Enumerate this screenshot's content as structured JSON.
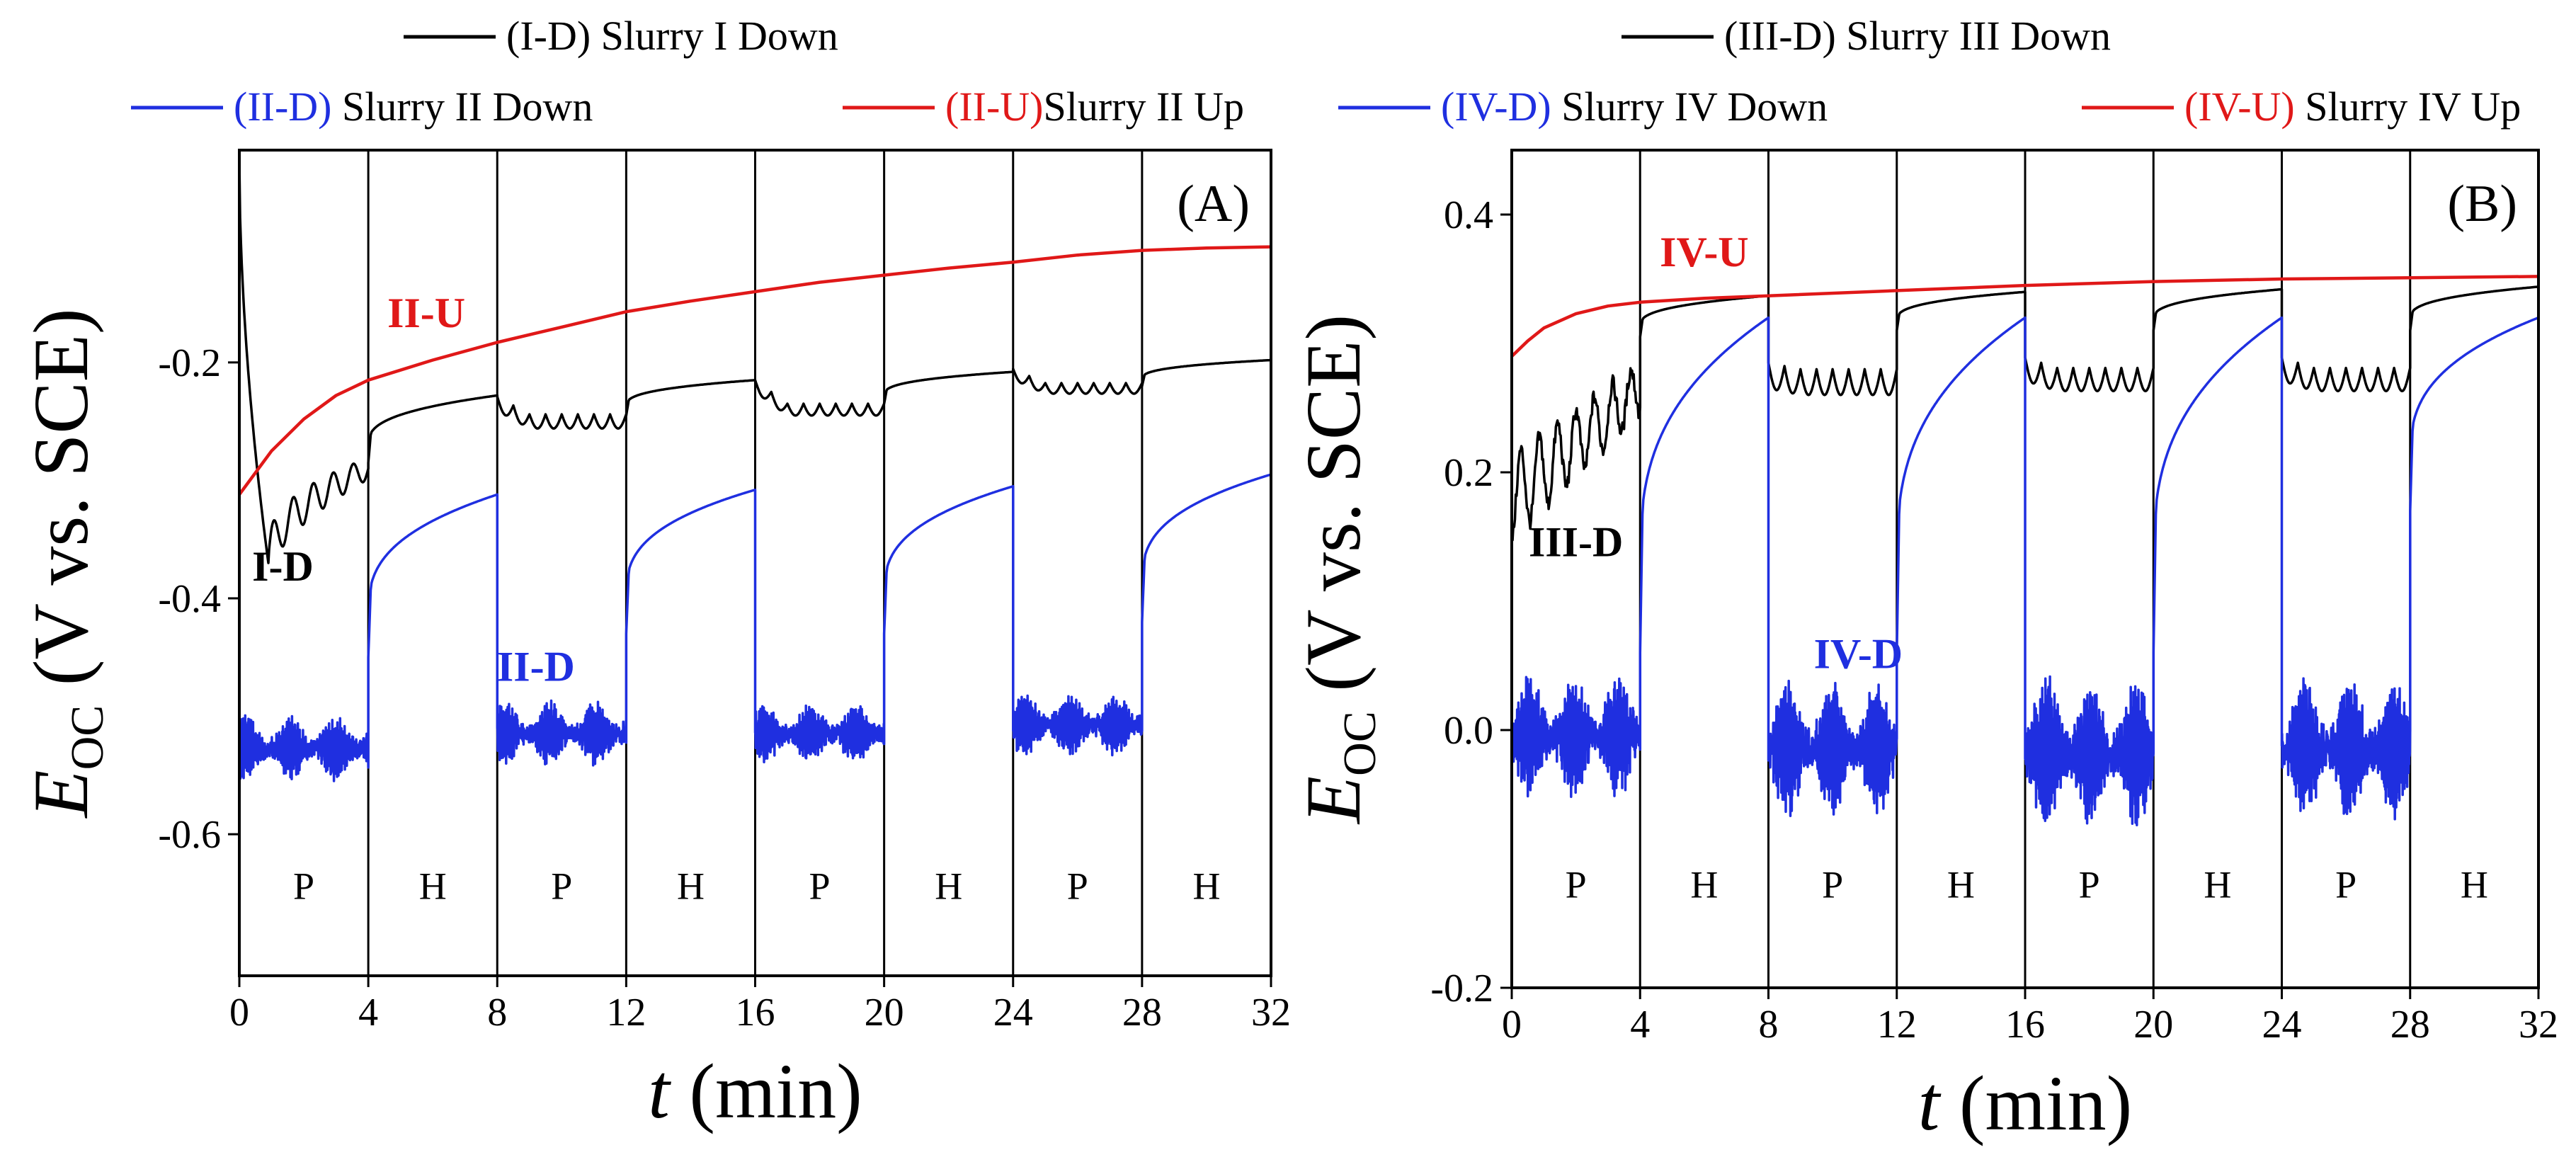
{
  "chart_data": [
    {
      "type": "line",
      "panel_label": "(A)",
      "xlabel_var": "t",
      "xlabel_unit": " (min)",
      "ylabel_var": "E",
      "ylabel_sub": "OC",
      "ylabel_rest": " (V vs. SCE)",
      "xlim": [
        0,
        32
      ],
      "ylim": [
        -0.72,
        -0.02
      ],
      "xticks": [
        0,
        4,
        8,
        12,
        16,
        20,
        24,
        28,
        32
      ],
      "xtick_labels": [
        "0",
        "4",
        "8",
        "12",
        "16",
        "20",
        "24",
        "28",
        "32"
      ],
      "yticks": [
        -0.2,
        -0.4,
        -0.6
      ],
      "ytick_labels": [
        "-0.2",
        "-0.4",
        "-0.6"
      ],
      "region_boundaries": [
        4,
        8,
        12,
        16,
        20,
        24,
        28
      ],
      "regions": [
        {
          "label": "P",
          "x": 2
        },
        {
          "label": "H",
          "x": 6
        },
        {
          "label": "P",
          "x": 10
        },
        {
          "label": "H",
          "x": 14
        },
        {
          "label": "P",
          "x": 18
        },
        {
          "label": "H",
          "x": 22
        },
        {
          "label": "P",
          "x": 26
        },
        {
          "label": "H",
          "x": 30
        }
      ],
      "region_label_y": -0.655,
      "legend": [
        {
          "text": "(I-D) Slurry I Down",
          "color": "#000000"
        },
        {
          "code": "(II-D)",
          "text": " Slurry II Down",
          "color": "#1f2fe0"
        },
        {
          "code": "(II-U)",
          "text": "Slurry II Up",
          "color": "#e01818"
        }
      ],
      "series": [
        {
          "name": "I-D",
          "color": "#000000",
          "label_at": [
            1.35,
            -0.385
          ],
          "segments": [
            {
              "t0": 0,
              "t1": 4,
              "kind": "start",
              "v0": -0.03,
              "vmin": -0.37,
              "tmin": 0.9,
              "vend": -0.29,
              "amp": 0.018
            },
            {
              "t0": 4,
              "t1": 8,
              "kind": "recover",
              "v0": -0.285,
              "v1": -0.228
            },
            {
              "t0": 8,
              "t1": 12,
              "kind": "osc",
              "vstart": -0.235,
              "vbase": -0.25,
              "amp": 0.012
            },
            {
              "t0": 12,
              "t1": 16,
              "kind": "recover",
              "v0": -0.245,
              "v1": -0.215
            },
            {
              "t0": 16,
              "t1": 20,
              "kind": "osc",
              "vstart": -0.22,
              "vbase": -0.24,
              "amp": 0.01
            },
            {
              "t0": 20,
              "t1": 24,
              "kind": "recover",
              "v0": -0.235,
              "v1": -0.208
            },
            {
              "t0": 24,
              "t1": 28,
              "kind": "osc",
              "vstart": -0.21,
              "vbase": -0.222,
              "amp": 0.009
            },
            {
              "t0": 28,
              "t1": 32,
              "kind": "recover",
              "v0": -0.22,
              "v1": -0.198
            }
          ]
        },
        {
          "name": "II-D",
          "color": "#1f2fe0",
          "label_at": [
            9.2,
            -0.47
          ],
          "segments": [
            {
              "t0": 0,
              "t1": 4,
              "kind": "noise",
              "center": -0.527,
              "amp": 0.022
            },
            {
              "t0": 4,
              "t1": 8,
              "kind": "recover",
              "v0": -0.45,
              "v1": -0.312
            },
            {
              "t0": 8,
              "t1": 12,
              "kind": "noise",
              "center": -0.515,
              "amp": 0.022
            },
            {
              "t0": 12,
              "t1": 16,
              "kind": "recover",
              "v0": -0.43,
              "v1": -0.308
            },
            {
              "t0": 16,
              "t1": 20,
              "kind": "noise",
              "center": -0.515,
              "amp": 0.02
            },
            {
              "t0": 20,
              "t1": 24,
              "kind": "recover",
              "v0": -0.43,
              "v1": -0.305
            },
            {
              "t0": 24,
              "t1": 28,
              "kind": "noise",
              "center": -0.508,
              "amp": 0.022
            },
            {
              "t0": 28,
              "t1": 32,
              "kind": "recover",
              "v0": -0.42,
              "v1": -0.295
            }
          ]
        },
        {
          "name": "II-U",
          "color": "#e01818",
          "label_at": [
            5.8,
            -0.17
          ],
          "x": [
            0,
            1,
            2,
            3,
            4,
            6,
            8,
            10,
            12,
            14,
            16,
            18,
            20,
            22,
            24,
            26,
            28,
            30,
            32
          ],
          "y": [
            -0.312,
            -0.275,
            -0.248,
            -0.228,
            -0.215,
            -0.198,
            -0.183,
            -0.17,
            -0.157,
            -0.148,
            -0.14,
            -0.132,
            -0.126,
            -0.12,
            -0.115,
            -0.109,
            -0.105,
            -0.103,
            -0.102
          ]
        }
      ]
    },
    {
      "type": "line",
      "panel_label": "(B)",
      "xlabel_var": "t",
      "xlabel_unit": " (min)",
      "ylabel_var": "E",
      "ylabel_sub": "OC",
      "ylabel_rest": " (V vs. SCE)",
      "xlim": [
        0,
        32
      ],
      "ylim": [
        -0.2,
        0.45
      ],
      "xticks": [
        0,
        4,
        8,
        12,
        16,
        20,
        24,
        28,
        32
      ],
      "xtick_labels": [
        "0",
        "4",
        "8",
        "12",
        "16",
        "20",
        "24",
        "28",
        "32"
      ],
      "yticks": [
        0.4,
        0.2,
        0.0,
        -0.2
      ],
      "ytick_labels": [
        "0.4",
        "0.2",
        "0.0",
        "-0.2"
      ],
      "region_boundaries": [
        4,
        8,
        12,
        16,
        20,
        24,
        28
      ],
      "regions": [
        {
          "label": "P",
          "x": 2
        },
        {
          "label": "H",
          "x": 6
        },
        {
          "label": "P",
          "x": 10
        },
        {
          "label": "H",
          "x": 14
        },
        {
          "label": "P",
          "x": 18
        },
        {
          "label": "H",
          "x": 22
        },
        {
          "label": "P",
          "x": 26
        },
        {
          "label": "H",
          "x": 30
        }
      ],
      "region_label_y": -0.13,
      "legend": [
        {
          "text": "(III-D) Slurry III Down",
          "color": "#000000"
        },
        {
          "code": "(IV-D)",
          "text": " Slurry IV Down",
          "color": "#1f2fe0"
        },
        {
          "code": "(IV-U)",
          "text": " Slurry IV Up",
          "color": "#e01818"
        }
      ],
      "series": [
        {
          "name": "III-D",
          "color": "#000000",
          "label_at": [
            2.0,
            0.135
          ],
          "segments": [
            {
              "t0": 0,
              "t1": 4,
              "kind": "rise_osc",
              "v0": 0.18,
              "v1": 0.265,
              "amp": 0.032
            },
            {
              "t0": 4,
              "t1": 8,
              "kind": "recover",
              "v0": 0.305,
              "v1": 0.337
            },
            {
              "t0": 8,
              "t1": 12,
              "kind": "osc",
              "vstart": 0.275,
              "vbase": 0.27,
              "amp": 0.02
            },
            {
              "t0": 12,
              "t1": 16,
              "kind": "recover",
              "v0": 0.31,
              "v1": 0.34
            },
            {
              "t0": 16,
              "t1": 20,
              "kind": "osc",
              "vstart": 0.28,
              "vbase": 0.272,
              "amp": 0.018
            },
            {
              "t0": 20,
              "t1": 24,
              "kind": "recover",
              "v0": 0.31,
              "v1": 0.342
            },
            {
              "t0": 24,
              "t1": 28,
              "kind": "osc",
              "vstart": 0.28,
              "vbase": 0.272,
              "amp": 0.018
            },
            {
              "t0": 28,
              "t1": 32,
              "kind": "recover",
              "v0": 0.31,
              "v1": 0.344
            }
          ]
        },
        {
          "name": "IV-D",
          "color": "#1f2fe0",
          "label_at": [
            10.8,
            0.048
          ],
          "segments": [
            {
              "t0": 0,
              "t1": 4,
              "kind": "noise",
              "center": -0.005,
              "amp": 0.038
            },
            {
              "t0": 4,
              "t1": 8,
              "kind": "recover",
              "v0": 0.06,
              "v1": 0.32
            },
            {
              "t0": 8,
              "t1": 12,
              "kind": "noise",
              "center": -0.015,
              "amp": 0.042
            },
            {
              "t0": 12,
              "t1": 16,
              "kind": "recover",
              "v0": 0.06,
              "v1": 0.32
            },
            {
              "t0": 16,
              "t1": 20,
              "kind": "noise",
              "center": -0.018,
              "amp": 0.048
            },
            {
              "t0": 20,
              "t1": 24,
              "kind": "recover",
              "v0": 0.06,
              "v1": 0.32
            },
            {
              "t0": 24,
              "t1": 28,
              "kind": "noise",
              "center": -0.015,
              "amp": 0.045
            },
            {
              "t0": 28,
              "t1": 32,
              "kind": "recover",
              "v0": 0.17,
              "v1": 0.32
            }
          ]
        },
        {
          "name": "IV-U",
          "color": "#e01818",
          "label_at": [
            6.0,
            0.36
          ],
          "x": [
            0,
            0.5,
            1,
            2,
            3,
            4,
            6,
            8,
            12,
            16,
            20,
            24,
            28,
            32
          ],
          "y": [
            0.29,
            0.302,
            0.312,
            0.323,
            0.329,
            0.332,
            0.335,
            0.337,
            0.341,
            0.345,
            0.348,
            0.35,
            0.351,
            0.352
          ]
        }
      ]
    }
  ]
}
